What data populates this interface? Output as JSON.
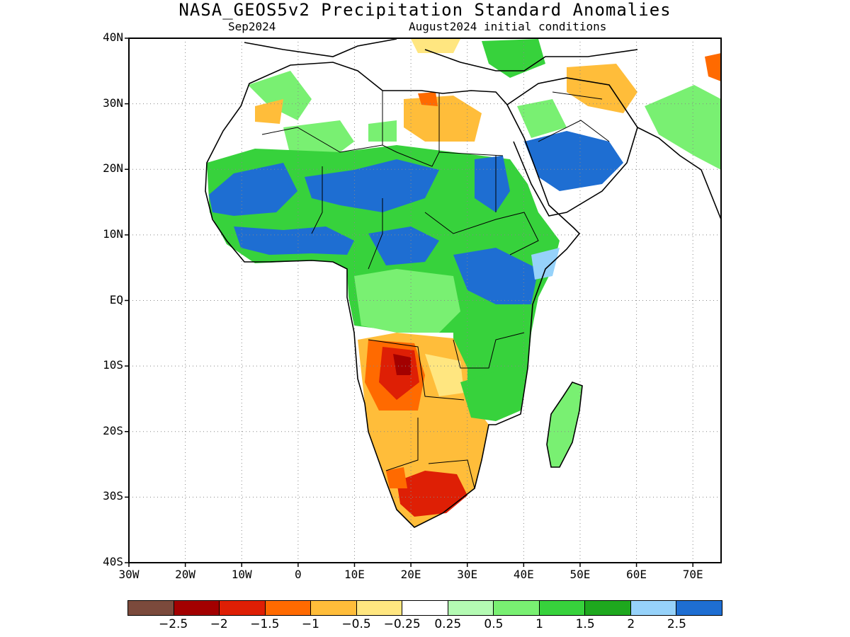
{
  "header": {
    "title": "NASA_GEOS5v2 Precipitation Standard Anomalies",
    "month": "Sep2024",
    "init": "August2024 initial conditions"
  },
  "axes": {
    "lat_labels": [
      "40N",
      "30N",
      "20N",
      "10N",
      "EQ",
      "10S",
      "20S",
      "30S",
      "40S"
    ],
    "lat_values": [
      40,
      30,
      20,
      10,
      0,
      -10,
      -20,
      -30,
      -40
    ],
    "lon_labels": [
      "30W",
      "20W",
      "10W",
      "0",
      "10E",
      "20E",
      "30E",
      "40E",
      "50E",
      "60E",
      "70E"
    ],
    "lon_values": [
      -30,
      -20,
      -10,
      0,
      10,
      20,
      30,
      40,
      50,
      60,
      70
    ],
    "lon_range": [
      -30,
      75
    ],
    "lat_range": [
      -40,
      40
    ],
    "grid": "dotted"
  },
  "colorbar": {
    "colors": [
      "#7b4a3c",
      "#a30000",
      "#de1f05",
      "#ff6a00",
      "#ffbd3a",
      "#ffe680",
      "#ffffff",
      "#b4fab3",
      "#79f072",
      "#37d23c",
      "#1ea81e",
      "#96d2fa",
      "#1e6ed2"
    ],
    "labels": [
      "−2.5",
      "−2",
      "−1.5",
      "−1",
      "−0.5",
      "−0.25",
      "0.25",
      "0.5",
      "1",
      "1.5",
      "2",
      "2.5"
    ]
  },
  "anomaly_regions": [
    {
      "level": "2.5",
      "color": "#1e6ed2",
      "area": "Sahel band 12N-20N"
    },
    {
      "level": "2.5",
      "color": "#1e6ed2",
      "area": "Arabian Peninsula / Yemen 17N-25N"
    },
    {
      "level": "2.5",
      "color": "#1e6ed2",
      "area": "East Africa 0-10N"
    },
    {
      "level": "1.5",
      "color": "#37d23c",
      "area": "Central Africa"
    },
    {
      "level": "-1",
      "color": "#ffbd3a",
      "area": "Southern Africa"
    },
    {
      "level": "-1.5",
      "color": "#de1f05",
      "area": "Angola"
    },
    {
      "level": "-1.5",
      "color": "#de1f05",
      "area": "South Africa interior"
    }
  ]
}
